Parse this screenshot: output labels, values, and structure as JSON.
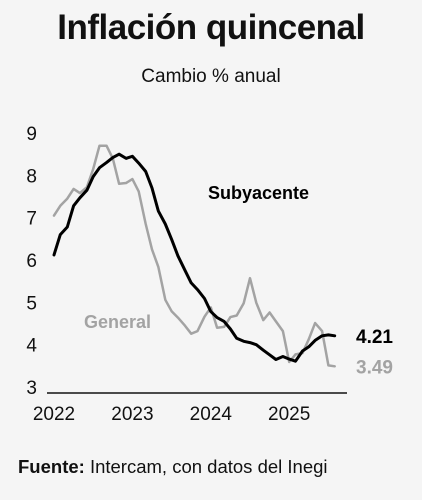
{
  "title": "Inflación quincenal",
  "subtitle": "Cambio % anual",
  "source": {
    "label": "Fuente:",
    "text": " Intercam, con datos del Inegi"
  },
  "chart_data": {
    "type": "line",
    "title": "Inflación quincenal",
    "subtitle": "Cambio % anual",
    "ylim": [
      3,
      9
    ],
    "xlim": [
      2022.0,
      2025.75
    ],
    "yticks": [
      3,
      4,
      5,
      6,
      7,
      8,
      9
    ],
    "xticks": [
      "2022",
      "2023",
      "2024",
      "2025"
    ],
    "grid": false,
    "series": [
      {
        "name": "Subyacente",
        "color": "#000000",
        "last_label": "4.21",
        "x": [
          2022.0,
          2022.08,
          2022.17,
          2022.25,
          2022.33,
          2022.42,
          2022.5,
          2022.58,
          2022.67,
          2022.75,
          2022.83,
          2022.92,
          2023.0,
          2023.08,
          2023.17,
          2023.25,
          2023.33,
          2023.42,
          2023.5,
          2023.58,
          2023.67,
          2023.75,
          2023.83,
          2023.92,
          2024.0,
          2024.08,
          2024.17,
          2024.25,
          2024.33,
          2024.42,
          2024.5,
          2024.58,
          2024.67,
          2024.75,
          2024.83,
          2024.92,
          2025.0,
          2025.08,
          2025.17,
          2025.25,
          2025.33,
          2025.42,
          2025.5,
          2025.58
        ],
        "y": [
          6.12,
          6.6,
          6.78,
          7.28,
          7.47,
          7.65,
          7.97,
          8.18,
          8.3,
          8.42,
          8.5,
          8.4,
          8.45,
          8.29,
          8.09,
          7.7,
          7.16,
          6.85,
          6.49,
          6.1,
          5.76,
          5.46,
          5.3,
          5.09,
          4.78,
          4.64,
          4.55,
          4.37,
          4.15,
          4.08,
          4.05,
          4.0,
          3.87,
          3.76,
          3.65,
          3.72,
          3.66,
          3.61,
          3.85,
          3.95,
          4.1,
          4.21,
          4.23,
          4.21
        ]
      },
      {
        "name": "General",
        "color": "#a3a3a3",
        "last_label": "3.49",
        "x": [
          2022.0,
          2022.08,
          2022.17,
          2022.25,
          2022.33,
          2022.42,
          2022.5,
          2022.58,
          2022.67,
          2022.75,
          2022.83,
          2022.92,
          2023.0,
          2023.08,
          2023.17,
          2023.25,
          2023.33,
          2023.42,
          2023.5,
          2023.58,
          2023.67,
          2023.75,
          2023.83,
          2023.92,
          2024.0,
          2024.08,
          2024.17,
          2024.25,
          2024.33,
          2024.42,
          2024.5,
          2024.58,
          2024.67,
          2024.75,
          2024.83,
          2024.92,
          2025.0,
          2025.08,
          2025.17,
          2025.25,
          2025.33,
          2025.42,
          2025.5,
          2025.58
        ],
        "y": [
          7.05,
          7.28,
          7.45,
          7.68,
          7.58,
          7.72,
          8.15,
          8.7,
          8.7,
          8.4,
          7.8,
          7.82,
          7.91,
          7.62,
          6.85,
          6.25,
          5.84,
          5.06,
          4.79,
          4.64,
          4.45,
          4.26,
          4.32,
          4.66,
          4.88,
          4.4,
          4.42,
          4.65,
          4.69,
          4.98,
          5.57,
          4.99,
          4.58,
          4.76,
          4.55,
          4.32,
          3.59,
          3.77,
          3.8,
          4.13,
          4.51,
          4.32,
          3.51,
          3.49
        ]
      }
    ]
  }
}
